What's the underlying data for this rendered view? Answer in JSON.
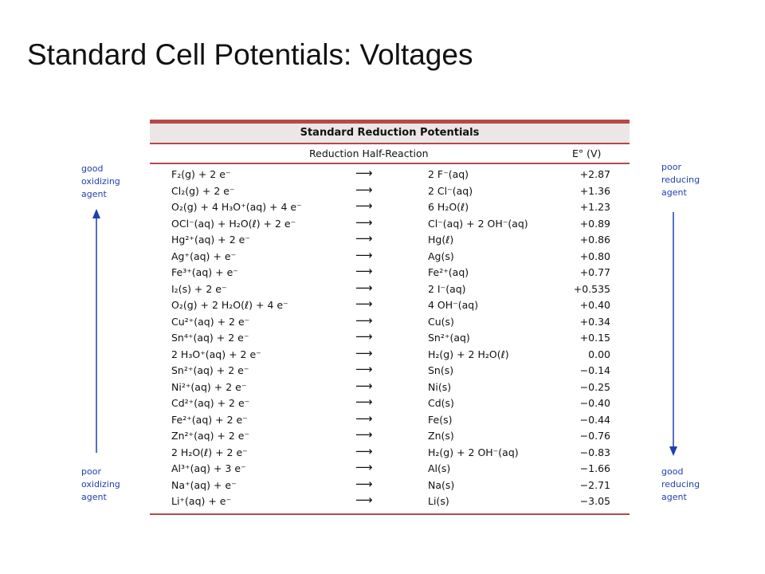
{
  "slide": {
    "title": "Standard Cell Potentials: Voltages"
  },
  "labels": {
    "left_top": [
      "good",
      "oxidizing",
      "agent"
    ],
    "left_bottom": [
      "poor",
      "oxidizing",
      "agent"
    ],
    "right_top": [
      "poor",
      "reducing",
      "agent"
    ],
    "right_bottom": [
      "good",
      "reducing",
      "agent"
    ]
  },
  "colors": {
    "label_blue": "#1f3fb0",
    "rule_red": "#b54a4a",
    "title_band": "#ece6e6"
  },
  "table": {
    "title": "Standard Reduction Potentials",
    "header_reaction": "Reduction Half-Reaction",
    "header_potential": "E° (V)",
    "arrow": "⟶",
    "rows": [
      {
        "left": "F₂(g) + 2 e⁻",
        "right": "2 F⁻(aq)",
        "e": "+2.87"
      },
      {
        "left": "Cl₂(g) + 2 e⁻",
        "right": "2 Cl⁻(aq)",
        "e": "+1.36"
      },
      {
        "left": "O₂(g) + 4 H₃O⁺(aq) + 4 e⁻",
        "right": "6 H₂O(ℓ)",
        "e": "+1.23"
      },
      {
        "left": "OCl⁻(aq) + H₂O(ℓ) + 2 e⁻",
        "right": "Cl⁻(aq) + 2 OH⁻(aq)",
        "e": "+0.89"
      },
      {
        "left": "Hg²⁺(aq) + 2 e⁻",
        "right": "Hg(ℓ)",
        "e": "+0.86"
      },
      {
        "left": "Ag⁺(aq) + e⁻",
        "right": "Ag(s)",
        "e": "+0.80"
      },
      {
        "left": "Fe³⁺(aq) + e⁻",
        "right": "Fe²⁺(aq)",
        "e": "+0.77"
      },
      {
        "left": "I₂(s) + 2 e⁻",
        "right": "2 I⁻(aq)",
        "e": "+0.535"
      },
      {
        "left": "O₂(g) + 2 H₂O(ℓ) + 4 e⁻",
        "right": "4 OH⁻(aq)",
        "e": "+0.40"
      },
      {
        "left": "Cu²⁺(aq) + 2 e⁻",
        "right": "Cu(s)",
        "e": "+0.34"
      },
      {
        "left": "Sn⁴⁺(aq) + 2 e⁻",
        "right": "Sn²⁺(aq)",
        "e": "+0.15"
      },
      {
        "left": "2 H₃O⁺(aq) + 2 e⁻",
        "right": "H₂(g) + 2 H₂O(ℓ)",
        "e": "0.00"
      },
      {
        "left": "Sn²⁺(aq) + 2 e⁻",
        "right": "Sn(s)",
        "e": "−0.14"
      },
      {
        "left": "Ni²⁺(aq) + 2 e⁻",
        "right": "Ni(s)",
        "e": "−0.25"
      },
      {
        "left": "Cd²⁺(aq) + 2 e⁻",
        "right": "Cd(s)",
        "e": "−0.40"
      },
      {
        "left": "Fe²⁺(aq) + 2 e⁻",
        "right": "Fe(s)",
        "e": "−0.44"
      },
      {
        "left": "Zn²⁺(aq) + 2 e⁻",
        "right": "Zn(s)",
        "e": "−0.76"
      },
      {
        "left": "2 H₂O(ℓ) + 2 e⁻",
        "right": "H₂(g) + 2 OH⁻(aq)",
        "e": "−0.83"
      },
      {
        "left": "Al³⁺(aq) + 3 e⁻",
        "right": "Al(s)",
        "e": "−1.66"
      },
      {
        "left": "Na⁺(aq) + e⁻",
        "right": "Na(s)",
        "e": "−2.71"
      },
      {
        "left": "Li⁺(aq) + e⁻",
        "right": "Li(s)",
        "e": "−3.05"
      }
    ]
  }
}
